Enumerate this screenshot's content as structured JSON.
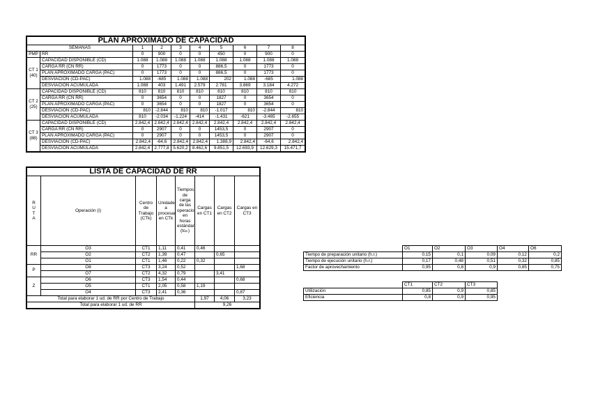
{
  "plan": {
    "title": "PLAN APROXIMADO DE CAPACIDAD",
    "semanas_label": "SEMANAS",
    "weeks": [
      "1",
      "2",
      "3",
      "4",
      "5",
      "6",
      "7",
      "8"
    ],
    "pmp": {
      "group": "PMP",
      "label": "RR",
      "values": [
        "0",
        "900",
        "0",
        "0",
        "450",
        "0",
        "900",
        "0"
      ]
    },
    "groups": [
      {
        "name": "CT 1\n(40)",
        "rows": [
          {
            "label": "CAPACIDAD DISPONIBLE (CD)",
            "values": [
              "1.088",
              "1.088",
              "1.088",
              "1.088",
              "1.088",
              "1.088",
              "1.088",
              "1.088"
            ]
          },
          {
            "label": "CARGA RR (CN RR)",
            "values": [
              "0",
              "1773",
              "0",
              "0",
              "886,5",
              "0",
              "1773",
              "0"
            ]
          },
          {
            "label": "PLAN APROXIMADO CARGA (PAC)",
            "values": [
              "0",
              "1773",
              "0",
              "0",
              "886,5",
              "0",
              "1773",
              "0"
            ]
          },
          {
            "label": "DESVIACION (CD-PAC)",
            "values": [
              "1.088",
              "-685",
              "1.088",
              "1.088",
              "202",
              "1.088",
              "-685",
              "1.088"
            ]
          },
          {
            "label": "DESVIACION ACUMULADA",
            "values": [
              "1.088",
              "403",
              "1.491",
              "2.579",
              "2.781",
              "3.869",
              "3.184",
              "4.272"
            ]
          }
        ]
      },
      {
        "name": "CT 2\n(25)",
        "rows": [
          {
            "label": "CAPACIDAD DISPONIBLE (CD)",
            "values": [
              "810",
              "810",
              "810",
              "810",
              "810",
              "810",
              "810",
              "810"
            ]
          },
          {
            "label": "CARGA RR (CN RR)",
            "values": [
              "0",
              "3654",
              "0",
              "0",
              "1827",
              "0",
              "3654",
              "0"
            ]
          },
          {
            "label": "PLAN APROXIMADO CARGA (PAC)",
            "values": [
              "0",
              "3654",
              "0",
              "0",
              "1827",
              "0",
              "3654",
              "0"
            ]
          },
          {
            "label": "DESVIACION (CD-PAC)",
            "values": [
              "810",
              "-2.844",
              "810",
              "810",
              "-1.017",
              "810",
              "-2.844",
              "810"
            ]
          },
          {
            "label": "DESVIACION ACUMULADA",
            "values": [
              "810",
              "-2.034",
              "-1.224",
              "-414",
              "-1.431",
              "-621",
              "-3.465",
              "-2.655"
            ]
          }
        ]
      },
      {
        "name": "CT 3\n(88)",
        "rows": [
          {
            "label": "CAPACIDAD DISPONIBLE (CD)",
            "values": [
              "2.842,4",
              "2.842,4",
              "2.842,4",
              "2.842,4",
              "2.842,4",
              "2.842,4",
              "2.842,4",
              "2.842,4"
            ]
          },
          {
            "label": "CARGA RR (CN RR)",
            "values": [
              "0",
              "2907",
              "0",
              "0",
              "1453,5",
              "0",
              "2907",
              "0"
            ]
          },
          {
            "label": "PLAN APROXIMADO CARGA (PAC)",
            "values": [
              "0",
              "2907",
              "0",
              "0",
              "1453,5",
              "0",
              "2907",
              "0"
            ]
          },
          {
            "label": "DESVIACION (CD-PAC)",
            "values": [
              "2.842,4",
              "-64,6",
              "2.842,4",
              "2.842,4",
              "1.388,9",
              "2.842,4",
              "-64,6",
              "2.842,4"
            ]
          },
          {
            "label": "DESVIACION ACUMULADA",
            "values": [
              "2.842,4",
              "2.777,8",
              "5.620,2",
              "8.462,6",
              "9.851,5",
              "12.693,9",
              "12.629,3",
              "15.471,7"
            ]
          }
        ]
      }
    ]
  },
  "lista": {
    "title": "LISTA DE CAPACIDAD DE RR",
    "headers": [
      "R\nU\nT\nA",
      "Operación (i)",
      "Centro de Trabajo (CTk)",
      "Unidades a procesar en CTk",
      "Tiempos de carga de las operaciones en horas estándar (tcᵢₖ)",
      "Cargas en CT1",
      "Cargas en CT2",
      "Cargas en CT3"
    ],
    "routes": [
      {
        "name": "RR",
        "rows": [
          [
            "O3",
            "CT1",
            "1,11",
            "0,41",
            "0,46",
            "",
            ""
          ],
          [
            "O2",
            "CT2",
            "1,39",
            "0,47",
            "",
            "0,65",
            ""
          ],
          [
            "O1",
            "CT1",
            "1,46",
            "0,22",
            "0,32",
            "",
            ""
          ]
        ]
      },
      {
        "name": "P",
        "rows": [
          [
            "O8",
            "CT3",
            "3,24",
            "0,52",
            "",
            "",
            "1,68"
          ],
          [
            "O7",
            "CT2",
            "4,32",
            "0,79",
            "",
            "3,41",
            ""
          ]
        ]
      },
      {
        "name": "Z",
        "rows": [
          [
            "O6",
            "CT3",
            "1,54",
            "0,44",
            "",
            "",
            "0,68"
          ],
          [
            "O5",
            "CT1",
            "2,05",
            "0,58",
            "1,19",
            "",
            ""
          ],
          [
            "O4",
            "CT3",
            "2,41",
            "0,36",
            "",
            "",
            "0,87"
          ]
        ]
      }
    ],
    "total_ct_label": "Total para elaborar 1 ud. de RR por Centro de Trabajo",
    "total_ct": [
      "1,97",
      "4,06",
      "3,23"
    ],
    "total_label": "Total para elaborar 1 ud. de RR",
    "total": "9,26"
  },
  "ops": {
    "headers": [
      "O1",
      "O2",
      "O3",
      "O4",
      "O6"
    ],
    "rows": [
      {
        "label": "Tiempo de preparación unitario (h.r.)",
        "values": [
          "0,15",
          "0,1",
          "0,09",
          "0,12",
          "0,2"
        ]
      },
      {
        "label": "Tiempo de ejecución unitario (h.r.)",
        "values": [
          "0,17",
          "0,48",
          "0,51",
          "0,32",
          "0,85"
        ]
      },
      {
        "label": "Factor de aprovechamiento",
        "values": [
          "0,95",
          "0,8",
          "0,9",
          "0,85",
          "0,75"
        ]
      }
    ]
  },
  "ct": {
    "headers": [
      "CT1",
      "CT2",
      "CT3"
    ],
    "rows": [
      {
        "label": "Utilización",
        "values": [
          "0,85",
          "0,9",
          "0,85"
        ]
      },
      {
        "label": "Eficiencia",
        "values": [
          "0,8",
          "0,9",
          "0,95"
        ]
      }
    ]
  }
}
